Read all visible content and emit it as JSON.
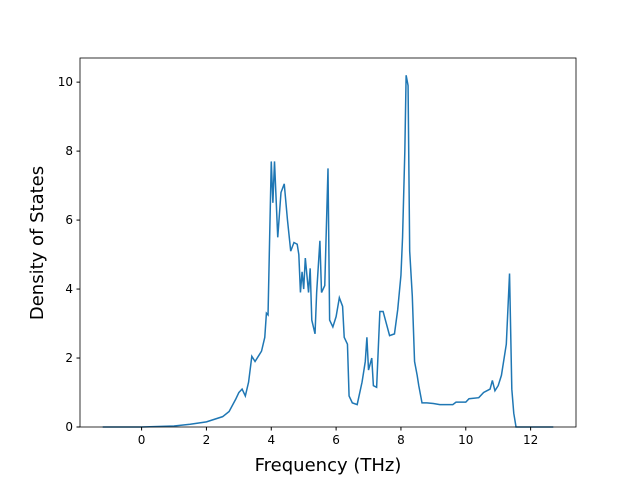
{
  "chart_data": {
    "type": "line",
    "xlabel": "Frequency (THz)",
    "ylabel": "Density of States",
    "x": [
      -1.2,
      0,
      1.0,
      1.5,
      2.0,
      2.5,
      2.7,
      2.9,
      3.0,
      3.1,
      3.2,
      3.3,
      3.4,
      3.5,
      3.6,
      3.7,
      3.8,
      3.85,
      3.9,
      3.95,
      4.0,
      4.05,
      4.1,
      4.2,
      4.3,
      4.4,
      4.5,
      4.6,
      4.7,
      4.8,
      4.85,
      4.9,
      4.95,
      5.0,
      5.05,
      5.1,
      5.15,
      5.2,
      5.25,
      5.35,
      5.4,
      5.5,
      5.55,
      5.65,
      5.75,
      5.8,
      5.9,
      6.0,
      6.1,
      6.2,
      6.25,
      6.35,
      6.4,
      6.5,
      6.65,
      6.8,
      6.9,
      6.95,
      7.0,
      7.1,
      7.15,
      7.25,
      7.35,
      7.45,
      7.55,
      7.65,
      7.8,
      7.9,
      8.0,
      8.05,
      8.12,
      8.16,
      8.22,
      8.27,
      8.35,
      8.42,
      8.5,
      8.55,
      8.65,
      8.8,
      9.0,
      9.2,
      9.6,
      9.7,
      10.0,
      10.1,
      10.4,
      10.55,
      10.75,
      10.82,
      10.9,
      11.0,
      11.1,
      11.25,
      11.35,
      11.42,
      11.48,
      11.55,
      12.7
    ],
    "series": [
      {
        "name": "DOS",
        "color": "#1f77b4",
        "values": [
          0,
          0,
          0.03,
          0.08,
          0.15,
          0.3,
          0.45,
          0.8,
          1.0,
          1.1,
          0.9,
          1.3,
          2.05,
          1.9,
          2.05,
          2.2,
          2.6,
          3.3,
          3.25,
          5.5,
          7.7,
          6.5,
          7.7,
          5.5,
          6.8,
          7.05,
          6.0,
          5.1,
          5.35,
          5.3,
          5.0,
          3.9,
          4.5,
          4.0,
          4.9,
          4.4,
          3.9,
          4.6,
          3.1,
          2.7,
          3.9,
          5.4,
          3.9,
          4.1,
          7.5,
          3.1,
          2.9,
          3.2,
          3.75,
          3.5,
          2.6,
          2.4,
          0.9,
          0.7,
          0.65,
          1.3,
          1.9,
          2.6,
          1.65,
          2.0,
          1.2,
          1.15,
          3.35,
          3.35,
          3.0,
          2.65,
          2.7,
          3.4,
          4.4,
          5.5,
          8.0,
          10.2,
          9.9,
          5.1,
          3.8,
          1.9,
          1.5,
          1.2,
          0.7,
          0.7,
          0.68,
          0.65,
          0.65,
          0.72,
          0.72,
          0.82,
          0.85,
          1.0,
          1.1,
          1.35,
          1.05,
          1.2,
          1.5,
          2.4,
          4.45,
          1.1,
          0.4,
          0,
          0
        ]
      }
    ],
    "xlim": [
      -1.9,
      13.4
    ],
    "ylim": [
      0,
      10.7
    ],
    "xticks": [
      0,
      2,
      4,
      6,
      8,
      10,
      12
    ],
    "yticks": [
      0,
      2,
      4,
      6,
      8,
      10
    ]
  }
}
